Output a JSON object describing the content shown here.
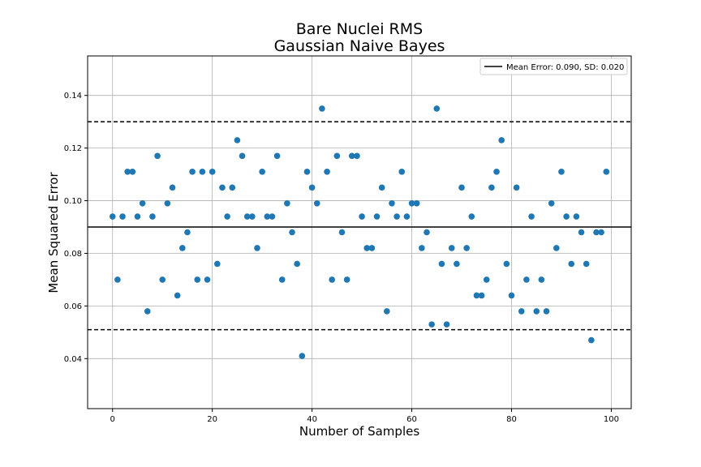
{
  "chart_data": {
    "type": "scatter",
    "title": "Bare Nuclei RMS",
    "subtitle": "Gaussian Naive Bayes",
    "xlabel": "Number of Samples",
    "ylabel": "Mean Squared Error",
    "xlim": [
      -5,
      104
    ],
    "ylim": [
      0.021,
      0.155
    ],
    "xticks": [
      "0",
      "20",
      "40",
      "60",
      "80",
      "100"
    ],
    "yticks": [
      "0.04",
      "0.06",
      "0.08",
      "0.10",
      "0.12",
      "0.14"
    ],
    "grid": true,
    "legend": {
      "placement": "upper right",
      "label": "Mean Error: 0.090, SD: 0.020"
    },
    "mean": 0.09,
    "sd": 0.02,
    "upper_band": 0.13,
    "lower_band": 0.051,
    "point_color": "#1f77b4",
    "x": [
      0,
      1,
      2,
      3,
      4,
      5,
      6,
      7,
      8,
      9,
      10,
      11,
      12,
      13,
      14,
      15,
      16,
      17,
      18,
      19,
      20,
      21,
      22,
      23,
      24,
      25,
      26,
      27,
      28,
      29,
      30,
      31,
      32,
      33,
      34,
      35,
      36,
      37,
      38,
      39,
      40,
      41,
      42,
      43,
      44,
      45,
      46,
      47,
      48,
      49,
      50,
      51,
      52,
      53,
      54,
      55,
      56,
      57,
      58,
      59,
      60,
      61,
      62,
      63,
      64,
      65,
      66,
      67,
      68,
      69,
      70,
      71,
      72,
      73,
      74,
      75,
      76,
      77,
      78,
      79,
      80,
      81,
      82,
      83,
      84,
      85,
      86,
      87,
      88,
      89,
      90,
      91,
      92,
      93,
      94,
      95,
      96,
      97,
      98,
      99
    ],
    "y": [
      0.094,
      0.07,
      0.094,
      0.111,
      0.111,
      0.094,
      0.099,
      0.058,
      0.094,
      0.117,
      0.07,
      0.099,
      0.105,
      0.064,
      0.082,
      0.088,
      0.111,
      0.07,
      0.111,
      0.07,
      0.111,
      0.076,
      0.105,
      0.094,
      0.105,
      0.123,
      0.117,
      0.094,
      0.094,
      0.082,
      0.111,
      0.094,
      0.094,
      0.117,
      0.07,
      0.099,
      0.088,
      0.076,
      0.041,
      0.111,
      0.105,
      0.099,
      0.135,
      0.111,
      0.07,
      0.117,
      0.088,
      0.07,
      0.117,
      0.117,
      0.094,
      0.082,
      0.082,
      0.094,
      0.105,
      0.058,
      0.099,
      0.094,
      0.111,
      0.094,
      0.099,
      0.099,
      0.082,
      0.088,
      0.053,
      0.135,
      0.076,
      0.053,
      0.082,
      0.076,
      0.105,
      0.082,
      0.094,
      0.064,
      0.064,
      0.07,
      0.105,
      0.111,
      0.123,
      0.076,
      0.064,
      0.105,
      0.058,
      0.07,
      0.094,
      0.058,
      0.07,
      0.058,
      0.099,
      0.082,
      0.111,
      0.094,
      0.076,
      0.094,
      0.088,
      0.076,
      0.047,
      0.088,
      0.088,
      0.111
    ]
  }
}
